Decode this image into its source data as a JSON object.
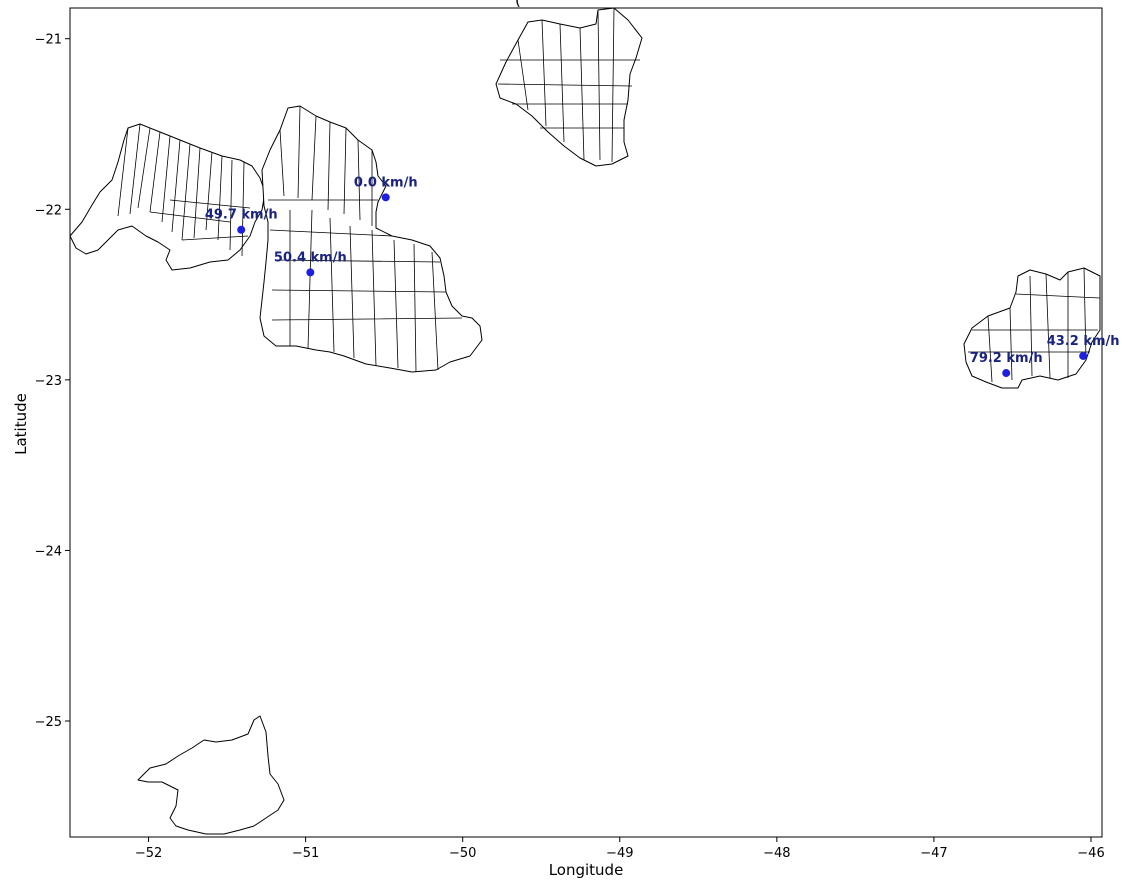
{
  "chart_data": {
    "type": "scatter",
    "title_fragment": "(",
    "xlabel": "Longitude",
    "ylabel": "Latitude",
    "xlim": [
      -52.5,
      -45.93
    ],
    "ylim": [
      -25.68,
      -20.82
    ],
    "x_ticks": [
      -52,
      -51,
      -50,
      -49,
      -48,
      -47,
      -46
    ],
    "y_ticks": [
      -21,
      -22,
      -23,
      -24,
      -25
    ],
    "x_tick_labels": [
      "−52",
      "−51",
      "−50",
      "−49",
      "−48",
      "−47",
      "−46"
    ],
    "y_tick_labels": [
      "−21",
      "−22",
      "−23",
      "−24",
      "−25"
    ],
    "point_color": "#1f1fe0",
    "label_color": "#1a237e",
    "points": [
      {
        "x": -50.49,
        "y": -21.93,
        "label": "0.0 km/h"
      },
      {
        "x": -51.41,
        "y": -22.12,
        "label": "49.7 km/h"
      },
      {
        "x": -50.97,
        "y": -22.37,
        "label": "50.4 km/h"
      },
      {
        "x": -46.54,
        "y": -22.96,
        "label": "79.2 km/h"
      },
      {
        "x": -46.05,
        "y": -22.86,
        "label": "43.2 km/h"
      }
    ]
  }
}
